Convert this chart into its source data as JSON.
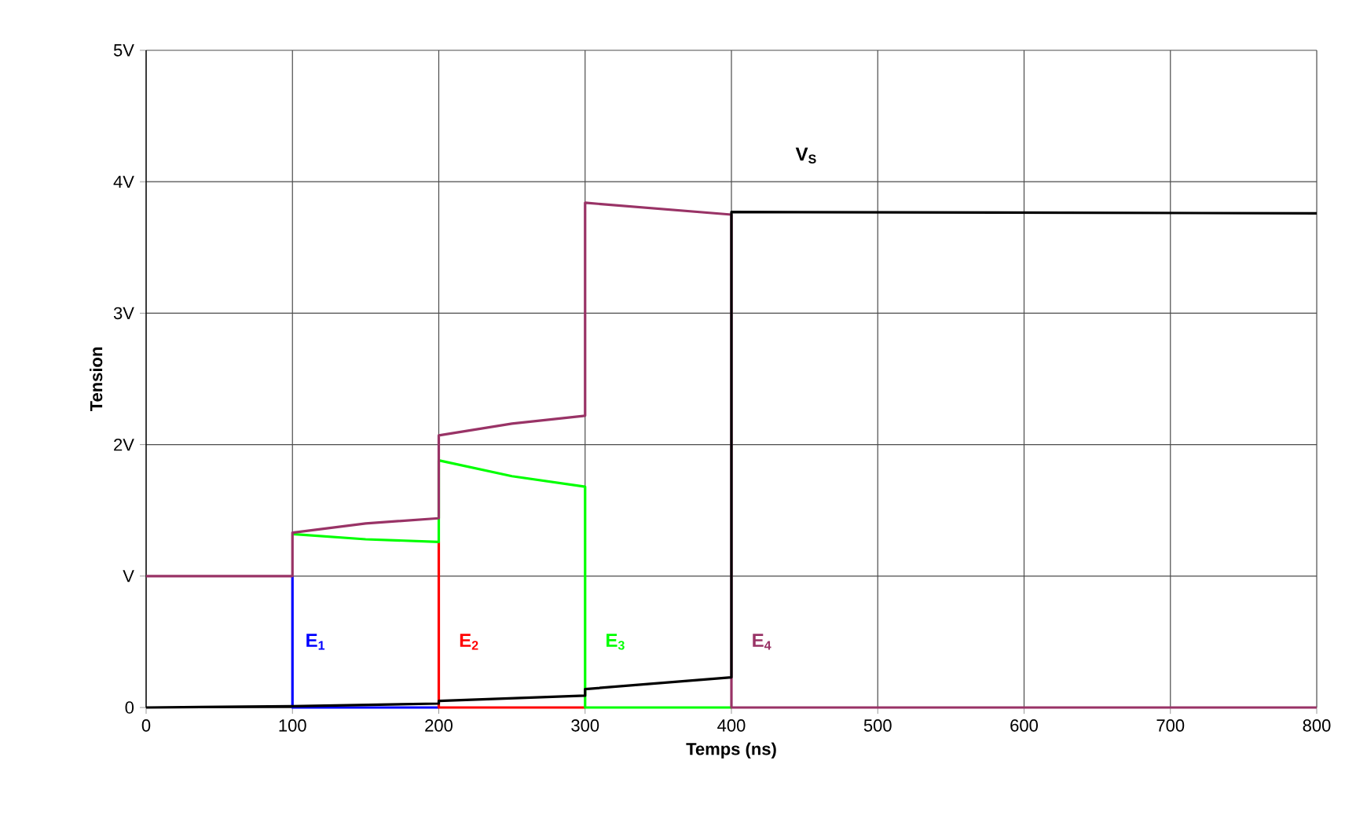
{
  "chart_data": {
    "type": "line",
    "xlabel": "Temps (ns)",
    "ylabel": "Tension",
    "xlim": [
      0,
      800
    ],
    "xticks": [
      0,
      100,
      200,
      300,
      400,
      500,
      600,
      700,
      800
    ],
    "ylim": [
      0,
      5
    ],
    "yticks": [
      {
        "value": 0,
        "label": "0"
      },
      {
        "value": 1,
        "label": "V"
      },
      {
        "value": 2,
        "label": "2V"
      },
      {
        "value": 3,
        "label": "3V"
      },
      {
        "value": 4,
        "label": "4V"
      },
      {
        "value": 5,
        "label": "5V"
      }
    ],
    "grid": true,
    "series": [
      {
        "name": "E$_{1}$",
        "color": "#0000ff",
        "x": [
          100,
          100,
          200
        ],
        "values": [
          1,
          0,
          0
        ]
      },
      {
        "name": "E$_{2}$",
        "color": "#ff0000",
        "x": [
          200,
          200,
          300
        ],
        "values": [
          1.26,
          0,
          0
        ]
      },
      {
        "name": "E$_{3}$",
        "color": "#00ff00",
        "x": [
          100,
          150,
          200,
          200,
          250,
          300,
          300,
          400
        ],
        "values": [
          1.32,
          1.28,
          1.26,
          1.88,
          1.76,
          1.68,
          0,
          0
        ]
      },
      {
        "name": "E$_{4}$",
        "color": "#993366",
        "x": [
          0,
          100,
          100,
          150,
          200,
          200,
          250,
          300,
          300,
          400,
          400,
          800
        ],
        "values": [
          1,
          1,
          1.33,
          1.4,
          1.44,
          2.07,
          2.16,
          2.22,
          3.84,
          3.75,
          0,
          0
        ]
      },
      {
        "name": "V$_{S}$",
        "color": "#000000",
        "x": [
          0,
          100,
          200,
          200,
          300,
          300,
          400,
          400,
          800
        ],
        "values": [
          0,
          0.01,
          0.03,
          0.05,
          0.09,
          0.14,
          0.23,
          3.77,
          3.76
        ]
      }
    ]
  }
}
